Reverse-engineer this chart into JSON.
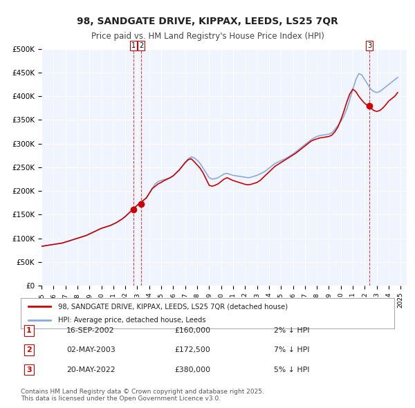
{
  "title": "98, SANDGATE DRIVE, KIPPAX, LEEDS, LS25 7QR",
  "subtitle": "Price paid vs. HM Land Registry's House Price Index (HPI)",
  "title_fontsize": 11,
  "subtitle_fontsize": 9,
  "background_color": "#ffffff",
  "plot_bg_color": "#f0f4ff",
  "grid_color": "#ffffff",
  "ylabel_color": "#333333",
  "ylim": [
    0,
    500000
  ],
  "yticks": [
    0,
    50000,
    100000,
    150000,
    200000,
    250000,
    300000,
    350000,
    400000,
    450000,
    500000
  ],
  "ytick_labels": [
    "£0",
    "£50K",
    "£100K",
    "£150K",
    "£200K",
    "£250K",
    "£300K",
    "£350K",
    "£400K",
    "£450K",
    "£500K"
  ],
  "red_line_color": "#cc0000",
  "blue_line_color": "#88aadd",
  "marker_color": "#cc0000",
  "vline_color": "#dd4444",
  "label_box_color": "#cc0000",
  "transaction_dates": [
    2002.71,
    2003.33,
    2022.38
  ],
  "transaction_prices": [
    160000,
    172500,
    380000
  ],
  "transaction_labels": [
    "1",
    "2",
    "3"
  ],
  "sale1_date": "16-SEP-2002",
  "sale1_price": "£160,000",
  "sale1_note": "2% ↓ HPI",
  "sale2_date": "02-MAY-2003",
  "sale2_price": "£172,500",
  "sale2_note": "7% ↓ HPI",
  "sale3_date": "20-MAY-2022",
  "sale3_price": "£380,000",
  "sale3_note": "5% ↓ HPI",
  "legend_label_red": "98, SANDGATE DRIVE, KIPPAX, LEEDS, LS25 7QR (detached house)",
  "legend_label_blue": "HPI: Average price, detached house, Leeds",
  "footer_text": "Contains HM Land Registry data © Crown copyright and database right 2025.\nThis data is licensed under the Open Government Licence v3.0.",
  "hpi_years": [
    1995.0,
    1995.25,
    1995.5,
    1995.75,
    1996.0,
    1996.25,
    1996.5,
    1996.75,
    1997.0,
    1997.25,
    1997.5,
    1997.75,
    1998.0,
    1998.25,
    1998.5,
    1998.75,
    1999.0,
    1999.25,
    1999.5,
    1999.75,
    2000.0,
    2000.25,
    2000.5,
    2000.75,
    2001.0,
    2001.25,
    2001.5,
    2001.75,
    2002.0,
    2002.25,
    2002.5,
    2002.75,
    2003.0,
    2003.25,
    2003.5,
    2003.75,
    2004.0,
    2004.25,
    2004.5,
    2004.75,
    2005.0,
    2005.25,
    2005.5,
    2005.75,
    2006.0,
    2006.25,
    2006.5,
    2006.75,
    2007.0,
    2007.25,
    2007.5,
    2007.75,
    2008.0,
    2008.25,
    2008.5,
    2008.75,
    2009.0,
    2009.25,
    2009.5,
    2009.75,
    2010.0,
    2010.25,
    2010.5,
    2010.75,
    2011.0,
    2011.25,
    2011.5,
    2011.75,
    2012.0,
    2012.25,
    2012.5,
    2012.75,
    2013.0,
    2013.25,
    2013.5,
    2013.75,
    2014.0,
    2014.25,
    2014.5,
    2014.75,
    2015.0,
    2015.25,
    2015.5,
    2015.75,
    2016.0,
    2016.25,
    2016.5,
    2016.75,
    2017.0,
    2017.25,
    2017.5,
    2017.75,
    2018.0,
    2018.25,
    2018.5,
    2018.75,
    2019.0,
    2019.25,
    2019.5,
    2019.75,
    2020.0,
    2020.25,
    2020.5,
    2020.75,
    2021.0,
    2021.25,
    2021.5,
    2021.75,
    2022.0,
    2022.25,
    2022.5,
    2022.75,
    2023.0,
    2023.25,
    2023.5,
    2023.75,
    2024.0,
    2024.25,
    2024.5,
    2024.75
  ],
  "hpi_values": [
    83000,
    84000,
    85000,
    86000,
    87000,
    88000,
    89000,
    90000,
    92000,
    94000,
    96000,
    98000,
    100000,
    102000,
    104000,
    106000,
    109000,
    112000,
    115000,
    118000,
    121000,
    123000,
    125000,
    127000,
    130000,
    133000,
    137000,
    141000,
    146000,
    152000,
    158000,
    164000,
    170000,
    175000,
    180000,
    185000,
    195000,
    205000,
    215000,
    220000,
    222000,
    224000,
    226000,
    228000,
    232000,
    238000,
    245000,
    252000,
    260000,
    268000,
    272000,
    270000,
    265000,
    258000,
    248000,
    238000,
    228000,
    225000,
    226000,
    228000,
    232000,
    236000,
    237000,
    235000,
    233000,
    232000,
    231000,
    230000,
    229000,
    228000,
    229000,
    231000,
    233000,
    236000,
    239000,
    243000,
    248000,
    253000,
    258000,
    261000,
    264000,
    267000,
    270000,
    274000,
    278000,
    283000,
    288000,
    293000,
    298000,
    303000,
    308000,
    312000,
    315000,
    317000,
    318000,
    319000,
    320000,
    323000,
    330000,
    338000,
    347000,
    358000,
    373000,
    393000,
    415000,
    435000,
    448000,
    445000,
    435000,
    425000,
    415000,
    410000,
    408000,
    410000,
    415000,
    420000,
    425000,
    430000,
    435000,
    440000
  ],
  "red_years": [
    1995.0,
    1995.25,
    1995.5,
    1995.75,
    1996.0,
    1996.25,
    1996.5,
    1996.75,
    1997.0,
    1997.25,
    1997.5,
    1997.75,
    1998.0,
    1998.25,
    1998.5,
    1998.75,
    1999.0,
    1999.25,
    1999.5,
    1999.75,
    2000.0,
    2000.25,
    2000.5,
    2000.75,
    2001.0,
    2001.25,
    2001.5,
    2001.75,
    2002.0,
    2002.25,
    2002.5,
    2002.75,
    2003.0,
    2003.25,
    2003.5,
    2003.75,
    2004.0,
    2004.25,
    2004.5,
    2004.75,
    2005.0,
    2005.25,
    2005.5,
    2005.75,
    2006.0,
    2006.25,
    2006.5,
    2006.75,
    2007.0,
    2007.25,
    2007.5,
    2007.75,
    2008.0,
    2008.25,
    2008.5,
    2008.75,
    2009.0,
    2009.25,
    2009.5,
    2009.75,
    2010.0,
    2010.25,
    2010.5,
    2010.75,
    2011.0,
    2011.25,
    2011.5,
    2011.75,
    2012.0,
    2012.25,
    2012.5,
    2012.75,
    2013.0,
    2013.25,
    2013.5,
    2013.75,
    2014.0,
    2014.25,
    2014.5,
    2014.75,
    2015.0,
    2015.25,
    2015.5,
    2015.75,
    2016.0,
    2016.25,
    2016.5,
    2016.75,
    2017.0,
    2017.25,
    2017.5,
    2017.75,
    2018.0,
    2018.25,
    2018.5,
    2018.75,
    2019.0,
    2019.25,
    2019.5,
    2019.75,
    2020.0,
    2020.25,
    2020.5,
    2020.75,
    2021.0,
    2021.25,
    2021.5,
    2021.75,
    2022.0,
    2022.25,
    2022.5,
    2022.75,
    2023.0,
    2023.25,
    2023.5,
    2023.75,
    2024.0,
    2024.25,
    2024.5,
    2024.75
  ],
  "red_values": [
    83000,
    84000,
    85000,
    86000,
    87000,
    88000,
    89000,
    90000,
    92000,
    94000,
    96000,
    98000,
    100000,
    102000,
    104000,
    106000,
    109000,
    112000,
    115000,
    118000,
    121000,
    123000,
    125000,
    127000,
    130000,
    133000,
    137000,
    141000,
    146000,
    152000,
    158000,
    164000,
    170000,
    175000,
    180000,
    185000,
    195000,
    205000,
    210000,
    215000,
    218000,
    222000,
    225000,
    228000,
    232000,
    238000,
    244000,
    252000,
    260000,
    266000,
    268000,
    262000,
    255000,
    248000,
    238000,
    225000,
    212000,
    210000,
    212000,
    215000,
    220000,
    225000,
    228000,
    225000,
    222000,
    220000,
    218000,
    216000,
    214000,
    213000,
    214000,
    216000,
    218000,
    222000,
    228000,
    234000,
    240000,
    246000,
    252000,
    256000,
    260000,
    264000,
    268000,
    272000,
    276000,
    280000,
    285000,
    290000,
    295000,
    300000,
    305000,
    308000,
    310000,
    312000,
    313000,
    314000,
    315000,
    318000,
    325000,
    335000,
    350000,
    368000,
    388000,
    405000,
    415000,
    410000,
    400000,
    392000,
    385000,
    380000,
    375000,
    370000,
    368000,
    370000,
    375000,
    382000,
    390000,
    395000,
    400000,
    408000
  ]
}
